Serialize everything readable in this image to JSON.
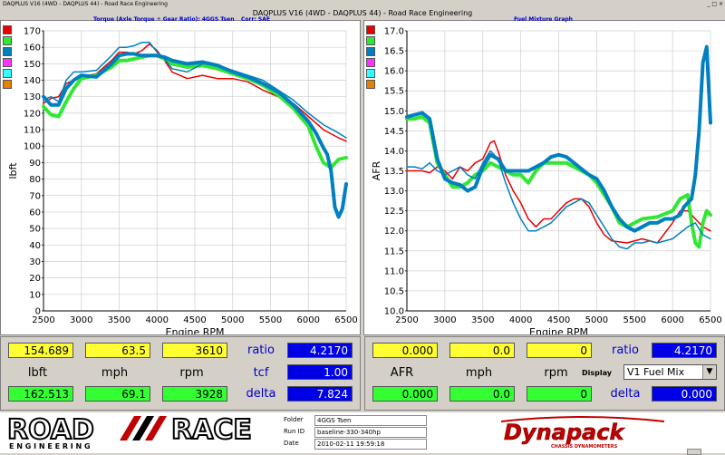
{
  "window": {
    "app_title": "DAQPLUS V16 (4WD - DAQPLUS 44) - Road Race Engineering",
    "subtitle": "DAQPLUS V16 (4WD - DAQPLUS 44) - Road Race Engineering",
    "buttons": [
      "minimize",
      "maximize",
      "close"
    ]
  },
  "left_panel": {
    "title": "Torque (Axle Torque ÷ Gear Ratio): 4GGS Tsen",
    "corr": "Corr: SAE",
    "swatch_colors": [
      "#e60000",
      "#33e633",
      "#0080c0",
      "#ff33ff",
      "#33ffff",
      "#e68000"
    ]
  },
  "right_panel": {
    "title": "Fuel Mixture Graph",
    "swatch_colors": [
      "#e60000",
      "#33e633",
      "#0080c0",
      "#ff33ff",
      "#33ffff",
      "#e68000"
    ]
  },
  "chart_data": [
    {
      "type": "line",
      "title": "Torque (Axle Torque ÷ Gear Ratio): 4GGS Tsen",
      "xlabel": "Engine RPM",
      "ylabel": "lbft",
      "xlim": [
        2500,
        6500
      ],
      "ylim": [
        0,
        170
      ],
      "x_ticks": [
        2500,
        3000,
        3500,
        4000,
        4500,
        5000,
        5500,
        6000,
        6500
      ],
      "y_ticks": [
        0,
        10,
        20,
        30,
        40,
        50,
        60,
        70,
        80,
        90,
        100,
        110,
        120,
        130,
        140,
        150,
        160,
        170
      ],
      "grid": true,
      "series": [
        {
          "color": "#e60000",
          "width": 1.5,
          "x": [
            2500,
            2600,
            2700,
            2800,
            2900,
            3000,
            3200,
            3400,
            3500,
            3600,
            3700,
            3800,
            3900,
            4000,
            4100,
            4200,
            4400,
            4600,
            4800,
            5000,
            5200,
            5400,
            5600,
            5800,
            6000,
            6200,
            6400,
            6500
          ],
          "y": [
            126,
            129,
            130,
            138,
            140,
            142,
            144,
            152,
            157,
            157,
            156,
            158,
            162,
            158,
            152,
            145,
            141,
            143,
            141,
            141,
            139,
            134,
            130,
            126,
            118,
            110,
            105,
            103
          ]
        },
        {
          "color": "#33e633",
          "width": 4,
          "x": [
            2500,
            2600,
            2700,
            2800,
            2900,
            3000,
            3200,
            3400,
            3500,
            3600,
            3700,
            3800,
            3900,
            4000,
            4100,
            4200,
            4400,
            4600,
            4800,
            5000,
            5200,
            5400,
            5600,
            5800,
            6000,
            6100,
            6200,
            6300,
            6400,
            6500
          ],
          "y": [
            124,
            119,
            118,
            127,
            135,
            141,
            143,
            148,
            152,
            152,
            153,
            154,
            155,
            155,
            153,
            150,
            148,
            149,
            147,
            144,
            141,
            137,
            131,
            123,
            112,
            100,
            90,
            87,
            92,
            93
          ]
        },
        {
          "color": "#0080c0",
          "width": 1.5,
          "x": [
            2500,
            2600,
            2700,
            2800,
            2900,
            3000,
            3200,
            3400,
            3500,
            3600,
            3700,
            3800,
            3900,
            4000,
            4100,
            4200,
            4400,
            4600,
            4800,
            5000,
            5200,
            5400,
            5600,
            5800,
            6000,
            6200,
            6400,
            6500
          ],
          "y": [
            128,
            130,
            127,
            140,
            145,
            145,
            146,
            155,
            160,
            160,
            161,
            163,
            163,
            157,
            153,
            147,
            145,
            150,
            149,
            146,
            143,
            140,
            134,
            128,
            120,
            113,
            108,
            105
          ]
        },
        {
          "color": "#0080c0",
          "width": 4,
          "x": [
            2500,
            2600,
            2700,
            2800,
            2900,
            3000,
            3200,
            3400,
            3500,
            3600,
            3700,
            3800,
            3900,
            4000,
            4100,
            4200,
            4400,
            4600,
            4800,
            5000,
            5200,
            5400,
            5600,
            5800,
            6000,
            6100,
            6200,
            6250,
            6300,
            6350,
            6400,
            6450,
            6500
          ],
          "y": [
            130,
            125,
            125,
            135,
            140,
            143,
            142,
            150,
            155,
            156,
            156,
            155,
            155,
            155,
            154,
            152,
            150,
            151,
            149,
            145,
            142,
            138,
            133,
            125,
            115,
            108,
            99,
            95,
            85,
            63,
            57,
            62,
            77
          ]
        }
      ]
    },
    {
      "type": "line",
      "title": "Fuel Mixture Graph",
      "xlabel": "Engine RPM",
      "ylabel": "AFR",
      "xlim": [
        2500,
        6500
      ],
      "ylim": [
        10.0,
        17.0
      ],
      "x_ticks": [
        2500,
        3000,
        3500,
        4000,
        4500,
        5000,
        5500,
        6000,
        6500
      ],
      "y_ticks": [
        10.0,
        10.5,
        11.0,
        11.5,
        12.0,
        12.5,
        13.0,
        13.5,
        14.0,
        14.5,
        15.0,
        15.5,
        16.0,
        16.5,
        17.0
      ],
      "grid": true,
      "series": [
        {
          "color": "#e60000",
          "width": 1.5,
          "x": [
            2500,
            2700,
            2800,
            2900,
            3000,
            3100,
            3200,
            3300,
            3400,
            3500,
            3600,
            3650,
            3700,
            3800,
            3900,
            4000,
            4100,
            4200,
            4300,
            4400,
            4500,
            4600,
            4700,
            4800,
            4900,
            5000,
            5100,
            5200,
            5400,
            5600,
            5800,
            6000,
            6100,
            6200,
            6300,
            6400,
            6500
          ],
          "y": [
            13.5,
            13.5,
            13.45,
            13.6,
            13.5,
            13.3,
            13.6,
            13.5,
            13.7,
            13.8,
            14.2,
            14.25,
            14.0,
            13.4,
            13.0,
            12.7,
            12.3,
            12.1,
            12.3,
            12.3,
            12.5,
            12.7,
            12.8,
            12.8,
            12.6,
            12.2,
            11.9,
            11.75,
            11.7,
            11.8,
            11.7,
            12.2,
            12.5,
            12.5,
            12.3,
            12.1,
            12.0
          ]
        },
        {
          "color": "#33e633",
          "width": 4,
          "x": [
            2500,
            2600,
            2700,
            2800,
            2850,
            2900,
            3000,
            3100,
            3200,
            3300,
            3400,
            3500,
            3600,
            3700,
            3800,
            3900,
            4000,
            4100,
            4200,
            4300,
            4400,
            4500,
            4600,
            4700,
            4800,
            4900,
            5000,
            5100,
            5200,
            5300,
            5400,
            5600,
            5800,
            6000,
            6100,
            6200,
            6250,
            6300,
            6350,
            6400,
            6450,
            6500
          ],
          "y": [
            14.8,
            14.8,
            14.85,
            14.7,
            14.2,
            13.7,
            13.4,
            13.1,
            13.1,
            13.2,
            13.4,
            13.5,
            13.7,
            13.6,
            13.5,
            13.4,
            13.4,
            13.2,
            13.5,
            13.7,
            13.7,
            13.7,
            13.7,
            13.6,
            13.5,
            13.4,
            13.2,
            12.9,
            12.6,
            12.2,
            12.1,
            12.3,
            12.35,
            12.5,
            12.8,
            12.9,
            12.2,
            11.7,
            11.6,
            12.2,
            12.5,
            12.4
          ]
        },
        {
          "color": "#0080c0",
          "width": 1.5,
          "x": [
            2500,
            2600,
            2700,
            2800,
            2900,
            3000,
            3100,
            3200,
            3300,
            3400,
            3500,
            3600,
            3700,
            3800,
            3900,
            4000,
            4100,
            4200,
            4300,
            4400,
            4500,
            4600,
            4700,
            4800,
            4900,
            5000,
            5100,
            5200,
            5300,
            5400,
            5500,
            5600,
            5700,
            5800,
            6000,
            6200,
            6300,
            6400,
            6500
          ],
          "y": [
            13.6,
            13.6,
            13.55,
            13.7,
            13.5,
            13.4,
            13.5,
            13.6,
            13.4,
            13.3,
            13.7,
            14.0,
            13.8,
            13.2,
            12.7,
            12.3,
            12.0,
            12.0,
            12.1,
            12.2,
            12.4,
            12.6,
            12.7,
            12.8,
            12.7,
            12.4,
            12.1,
            11.8,
            11.6,
            11.55,
            11.7,
            11.7,
            11.75,
            11.7,
            11.8,
            12.1,
            12.2,
            11.9,
            11.8
          ]
        },
        {
          "color": "#0080c0",
          "width": 4,
          "x": [
            2500,
            2600,
            2700,
            2800,
            2850,
            2900,
            3000,
            3100,
            3200,
            3300,
            3400,
            3500,
            3600,
            3700,
            3800,
            3900,
            4000,
            4100,
            4200,
            4300,
            4400,
            4500,
            4600,
            4700,
            4800,
            4900,
            5000,
            5100,
            5200,
            5300,
            5400,
            5500,
            5600,
            5700,
            5800,
            5900,
            6000,
            6100,
            6150,
            6200,
            6250,
            6300,
            6350,
            6400,
            6450,
            6500
          ],
          "y": [
            14.85,
            14.9,
            14.95,
            14.8,
            14.3,
            13.8,
            13.3,
            13.2,
            13.15,
            13.0,
            13.1,
            13.6,
            13.9,
            13.8,
            13.5,
            13.5,
            13.5,
            13.5,
            13.6,
            13.7,
            13.85,
            13.9,
            13.85,
            13.7,
            13.55,
            13.4,
            13.3,
            13.0,
            12.6,
            12.3,
            12.1,
            12.0,
            12.1,
            12.2,
            12.2,
            12.3,
            12.3,
            12.4,
            12.6,
            12.7,
            12.8,
            13.4,
            14.5,
            16.2,
            16.6,
            14.7
          ]
        }
      ]
    }
  ],
  "readouts": {
    "left": {
      "top_values": [
        "154.689",
        "63.5",
        "3610"
      ],
      "labels": [
        "lbft",
        "mph",
        "rpm"
      ],
      "bottom_values": [
        "162.513",
        "69.1",
        "3928"
      ],
      "ratio_label": "ratio",
      "ratio_value": "4.2170",
      "tcf_label": "tcf",
      "tcf_value": "1.00",
      "delta_label": "delta",
      "delta_value": "7.824"
    },
    "right": {
      "top_values": [
        "0.000",
        "0.0",
        "0"
      ],
      "labels": [
        "AFR",
        "mph",
        "rpm"
      ],
      "bottom_values": [
        "0.000",
        "0.0",
        "0"
      ],
      "ratio_label": "ratio",
      "ratio_value": "4.2170",
      "display_label": "Display",
      "display_value": "V1 Fuel Mix",
      "delta_label": "delta",
      "delta_value": "0.000"
    }
  },
  "footer": {
    "logo_text_1": "ROAD",
    "logo_text_2": "RACE",
    "logo_subtext": "E N G I N E E R I N G",
    "info": [
      {
        "key": "Folder",
        "value": "4GGS Tsen"
      },
      {
        "key": "Run ID",
        "value": "baseline-330-340hp"
      },
      {
        "key": "Date",
        "value": "2010-02-11 19:59:18"
      }
    ],
    "dyna_logo": "Dynapack",
    "dyna_sub": "CHASSIS DYNAMOMETERS"
  }
}
